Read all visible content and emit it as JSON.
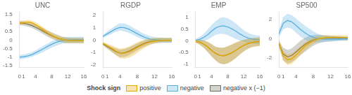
{
  "chart_data": [
    {
      "type": "line",
      "title": "UNC",
      "x": [
        0,
        1,
        2,
        3,
        4,
        5,
        6,
        7,
        8,
        9,
        10,
        11,
        12,
        13,
        14,
        15,
        16
      ],
      "xlim": [
        0,
        16
      ],
      "xticks": [
        0,
        1,
        4,
        8,
        12,
        16
      ],
      "ylim": [
        -1.6,
        1.65
      ],
      "yticks": [
        -1.5,
        -1,
        -0.5,
        0,
        0.5,
        1,
        1.5
      ],
      "grid": false,
      "series": [
        {
          "name": "positive",
          "color": "#E8A800",
          "values": [
            1.0,
            1.02,
            1.05,
            1.02,
            0.9,
            0.75,
            0.58,
            0.42,
            0.28,
            0.16,
            0.08,
            0.02,
            -0.02,
            -0.03,
            -0.03,
            -0.03,
            -0.03
          ],
          "lo": [
            0.88,
            0.9,
            0.92,
            0.88,
            0.76,
            0.6,
            0.43,
            0.28,
            0.14,
            0.03,
            -0.06,
            -0.12,
            -0.16,
            -0.17,
            -0.17,
            -0.17,
            -0.17
          ],
          "hi": [
            1.12,
            1.14,
            1.17,
            1.15,
            1.04,
            0.9,
            0.73,
            0.57,
            0.43,
            0.3,
            0.22,
            0.16,
            0.12,
            0.11,
            0.11,
            0.11,
            0.11
          ]
        },
        {
          "name": "negative",
          "color": "#5AAEE0",
          "values": [
            -1.0,
            -0.98,
            -0.93,
            -0.86,
            -0.75,
            -0.63,
            -0.5,
            -0.37,
            -0.25,
            -0.15,
            -0.07,
            -0.02,
            0.01,
            0.02,
            0.02,
            0.02,
            0.02
          ],
          "lo": [
            -1.12,
            -1.1,
            -1.06,
            -0.99,
            -0.9,
            -0.8,
            -0.68,
            -0.56,
            -0.45,
            -0.35,
            -0.26,
            -0.19,
            -0.15,
            -0.13,
            -0.13,
            -0.13,
            -0.13
          ],
          "hi": [
            -0.88,
            -0.85,
            -0.79,
            -0.72,
            -0.6,
            -0.47,
            -0.33,
            -0.2,
            -0.07,
            0.03,
            0.11,
            0.17,
            0.19,
            0.19,
            0.19,
            0.19,
            0.19
          ]
        },
        {
          "name": "negative x (−1)",
          "color": "#707060",
          "values": [
            1.0,
            0.98,
            0.93,
            0.86,
            0.75,
            0.63,
            0.5,
            0.37,
            0.25,
            0.15,
            0.07,
            0.02,
            -0.01,
            -0.02,
            -0.02,
            -0.02,
            -0.02
          ],
          "lo": [
            0.88,
            0.85,
            0.79,
            0.72,
            0.6,
            0.47,
            0.33,
            0.2,
            0.07,
            -0.03,
            -0.11,
            -0.17,
            -0.19,
            -0.19,
            -0.19,
            -0.19,
            -0.19
          ],
          "hi": [
            1.12,
            1.1,
            1.06,
            0.99,
            0.9,
            0.8,
            0.68,
            0.56,
            0.45,
            0.35,
            0.26,
            0.19,
            0.15,
            0.13,
            0.13,
            0.13,
            0.13
          ]
        }
      ]
    },
    {
      "type": "line",
      "title": "RGDP",
      "x": [
        0,
        1,
        2,
        3,
        4,
        5,
        6,
        7,
        8,
        9,
        10,
        11,
        12,
        13,
        14,
        15,
        16
      ],
      "xlim": [
        0,
        16
      ],
      "xticks": [
        0,
        1,
        4,
        8,
        12,
        16
      ],
      "ylim": [
        -2.2,
        2.3
      ],
      "yticks": [
        -2,
        -1,
        0,
        1,
        2
      ],
      "grid": false,
      "series": [
        {
          "name": "positive",
          "color": "#E8A800",
          "values": [
            -0.25,
            -0.45,
            -0.65,
            -0.88,
            -1.05,
            -1.05,
            -0.95,
            -0.78,
            -0.58,
            -0.4,
            -0.25,
            -0.15,
            -0.08,
            -0.04,
            -0.02,
            -0.01,
            -0.01
          ],
          "lo": [
            -0.35,
            -0.62,
            -0.9,
            -1.2,
            -1.45,
            -1.5,
            -1.42,
            -1.25,
            -1.02,
            -0.78,
            -0.56,
            -0.38,
            -0.25,
            -0.17,
            -0.13,
            -0.11,
            -0.11
          ],
          "hi": [
            -0.15,
            -0.28,
            -0.4,
            -0.56,
            -0.68,
            -0.63,
            -0.52,
            -0.35,
            -0.17,
            -0.03,
            0.07,
            0.14,
            0.19,
            0.2,
            0.2,
            0.2,
            0.2
          ]
        },
        {
          "name": "negative",
          "color": "#5AAEE0",
          "values": [
            0.3,
            0.52,
            0.72,
            0.92,
            1.05,
            1.02,
            0.9,
            0.72,
            0.52,
            0.35,
            0.2,
            0.1,
            0.04,
            0.01,
            0.0,
            0.0,
            0.0
          ],
          "lo": [
            0.18,
            0.35,
            0.52,
            0.68,
            0.78,
            0.72,
            0.6,
            0.44,
            0.26,
            0.1,
            -0.02,
            -0.1,
            -0.15,
            -0.17,
            -0.18,
            -0.18,
            -0.18
          ],
          "hi": [
            0.42,
            0.7,
            0.95,
            1.2,
            1.38,
            1.35,
            1.23,
            1.03,
            0.82,
            0.62,
            0.46,
            0.34,
            0.26,
            0.22,
            0.2,
            0.19,
            0.19
          ]
        },
        {
          "name": "negative x (−1)",
          "color": "#707060",
          "values": [
            -0.3,
            -0.52,
            -0.72,
            -0.92,
            -1.05,
            -1.02,
            -0.9,
            -0.72,
            -0.52,
            -0.35,
            -0.2,
            -0.1,
            -0.04,
            -0.01,
            0.0,
            0.0,
            0.0
          ],
          "lo": [
            -0.42,
            -0.7,
            -0.95,
            -1.2,
            -1.38,
            -1.35,
            -1.23,
            -1.03,
            -0.82,
            -0.62,
            -0.46,
            -0.34,
            -0.26,
            -0.22,
            -0.2,
            -0.19,
            -0.19
          ],
          "hi": [
            -0.18,
            -0.35,
            -0.52,
            -0.68,
            -0.78,
            -0.72,
            -0.6,
            -0.44,
            -0.26,
            -0.1,
            0.02,
            0.1,
            0.15,
            0.17,
            0.18,
            0.18,
            0.18
          ]
        }
      ]
    },
    {
      "type": "line",
      "title": "EMP",
      "x": [
        0,
        1,
        2,
        3,
        4,
        5,
        6,
        7,
        8,
        9,
        10,
        11,
        12,
        13,
        14,
        15,
        16
      ],
      "xlim": [
        0,
        16
      ],
      "xticks": [
        0,
        1,
        4,
        8,
        12,
        16
      ],
      "ylim": [
        -1.15,
        1.25
      ],
      "yticks": [
        -1,
        -0.5,
        0,
        0.5,
        1
      ],
      "grid": false,
      "series": [
        {
          "name": "positive",
          "color": "#E8A800",
          "values": [
            -0.02,
            -0.06,
            -0.14,
            -0.26,
            -0.42,
            -0.55,
            -0.63,
            -0.65,
            -0.6,
            -0.52,
            -0.42,
            -0.3,
            -0.2,
            -0.12,
            -0.08,
            -0.05,
            -0.04
          ],
          "lo": [
            -0.08,
            -0.16,
            -0.3,
            -0.48,
            -0.68,
            -0.85,
            -0.98,
            -1.02,
            -0.98,
            -0.88,
            -0.75,
            -0.6,
            -0.46,
            -0.35,
            -0.28,
            -0.24,
            -0.22
          ],
          "hi": [
            0.04,
            0.04,
            0.02,
            -0.04,
            -0.15,
            -0.26,
            -0.3,
            -0.3,
            -0.24,
            -0.16,
            -0.08,
            -0.01,
            0.04,
            0.08,
            0.11,
            0.13,
            0.14
          ]
        },
        {
          "name": "negative",
          "color": "#5AAEE0",
          "values": [
            0.02,
            0.06,
            0.14,
            0.26,
            0.42,
            0.55,
            0.63,
            0.65,
            0.6,
            0.52,
            0.42,
            0.3,
            0.2,
            0.12,
            0.08,
            0.05,
            0.04
          ],
          "lo": [
            -0.04,
            -0.04,
            -0.02,
            0.04,
            0.15,
            0.26,
            0.3,
            0.3,
            0.24,
            0.16,
            0.08,
            0.01,
            -0.04,
            -0.08,
            -0.11,
            -0.13,
            -0.14
          ],
          "hi": [
            0.08,
            0.16,
            0.3,
            0.48,
            0.68,
            0.85,
            0.98,
            1.02,
            0.98,
            0.88,
            0.75,
            0.6,
            0.46,
            0.35,
            0.28,
            0.24,
            0.22
          ]
        },
        {
          "name": "negative x (−1)",
          "color": "#707060",
          "values": [
            -0.02,
            -0.06,
            -0.14,
            -0.26,
            -0.42,
            -0.55,
            -0.63,
            -0.65,
            -0.6,
            -0.52,
            -0.42,
            -0.3,
            -0.2,
            -0.12,
            -0.08,
            -0.05,
            -0.04
          ],
          "lo": [
            -0.08,
            -0.16,
            -0.3,
            -0.48,
            -0.68,
            -0.85,
            -0.98,
            -1.02,
            -0.98,
            -0.88,
            -0.75,
            -0.6,
            -0.46,
            -0.35,
            -0.28,
            -0.24,
            -0.22
          ],
          "hi": [
            0.04,
            0.04,
            0.02,
            -0.04,
            -0.15,
            -0.26,
            -0.3,
            -0.3,
            -0.24,
            -0.16,
            -0.08,
            -0.01,
            0.04,
            0.08,
            0.11,
            0.13,
            0.14
          ]
        }
      ]
    },
    {
      "type": "line",
      "title": "SP500",
      "x": [
        0,
        1,
        2,
        3,
        4,
        5,
        6,
        7,
        8,
        9,
        10,
        11,
        12,
        13,
        14,
        15,
        16
      ],
      "xlim": [
        0,
        16
      ],
      "xticks": [
        0,
        1,
        4,
        8,
        12,
        16
      ],
      "ylim": [
        -3,
        2.8
      ],
      "yticks": [
        -2,
        0,
        2
      ],
      "grid": false,
      "legend": "bottom",
      "legend_title": "Shock sign",
      "series": [
        {
          "name": "positive",
          "color": "#E8A800",
          "values": [
            -0.5,
            -1.8,
            -2.2,
            -2.1,
            -1.7,
            -1.25,
            -0.82,
            -0.48,
            -0.22,
            -0.05,
            0.05,
            0.1,
            0.12,
            0.12,
            0.12,
            0.12,
            0.12
          ],
          "lo": [
            -0.8,
            -2.3,
            -2.75,
            -2.65,
            -2.22,
            -1.72,
            -1.25,
            -0.85,
            -0.52,
            -0.28,
            -0.12,
            -0.02,
            0.02,
            0.04,
            0.05,
            0.05,
            0.05
          ],
          "hi": [
            -0.2,
            -1.3,
            -1.65,
            -1.55,
            -1.18,
            -0.8,
            -0.42,
            -0.12,
            0.1,
            0.25,
            0.32,
            0.35,
            0.35,
            0.35,
            0.35,
            0.35,
            0.35
          ]
        },
        {
          "name": "negative",
          "color": "#5AAEE0",
          "values": [
            0.5,
            1.6,
            1.9,
            1.75,
            1.38,
            0.98,
            0.62,
            0.34,
            0.14,
            0.02,
            -0.04,
            -0.06,
            -0.06,
            -0.06,
            -0.05,
            -0.04,
            -0.04
          ],
          "lo": [
            0.15,
            0.95,
            1.18,
            1.02,
            0.62,
            0.22,
            -0.08,
            -0.28,
            -0.38,
            -0.4,
            -0.38,
            -0.34,
            -0.3,
            -0.26,
            -0.22,
            -0.18,
            -0.16
          ],
          "hi": [
            0.85,
            2.25,
            2.6,
            2.45,
            2.1,
            1.72,
            1.38,
            1.05,
            0.75,
            0.52,
            0.38,
            0.3,
            0.26,
            0.24,
            0.22,
            0.22,
            0.22
          ]
        },
        {
          "name": "negative x (−1)",
          "color": "#707060",
          "values": [
            -0.5,
            -1.6,
            -1.9,
            -1.75,
            -1.38,
            -0.98,
            -0.62,
            -0.34,
            -0.14,
            -0.02,
            0.04,
            0.06,
            0.06,
            0.06,
            0.05,
            0.04,
            0.04
          ],
          "lo": [
            -0.85,
            -2.25,
            -2.6,
            -2.45,
            -2.1,
            -1.72,
            -1.38,
            -1.05,
            -0.75,
            -0.52,
            -0.38,
            -0.3,
            -0.26,
            -0.24,
            -0.22,
            -0.22,
            -0.22
          ],
          "hi": [
            -0.15,
            -0.95,
            -1.18,
            -1.02,
            -0.62,
            -0.22,
            0.08,
            0.28,
            0.38,
            0.4,
            0.38,
            0.34,
            0.3,
            0.26,
            0.22,
            0.18,
            0.16
          ]
        }
      ]
    }
  ]
}
